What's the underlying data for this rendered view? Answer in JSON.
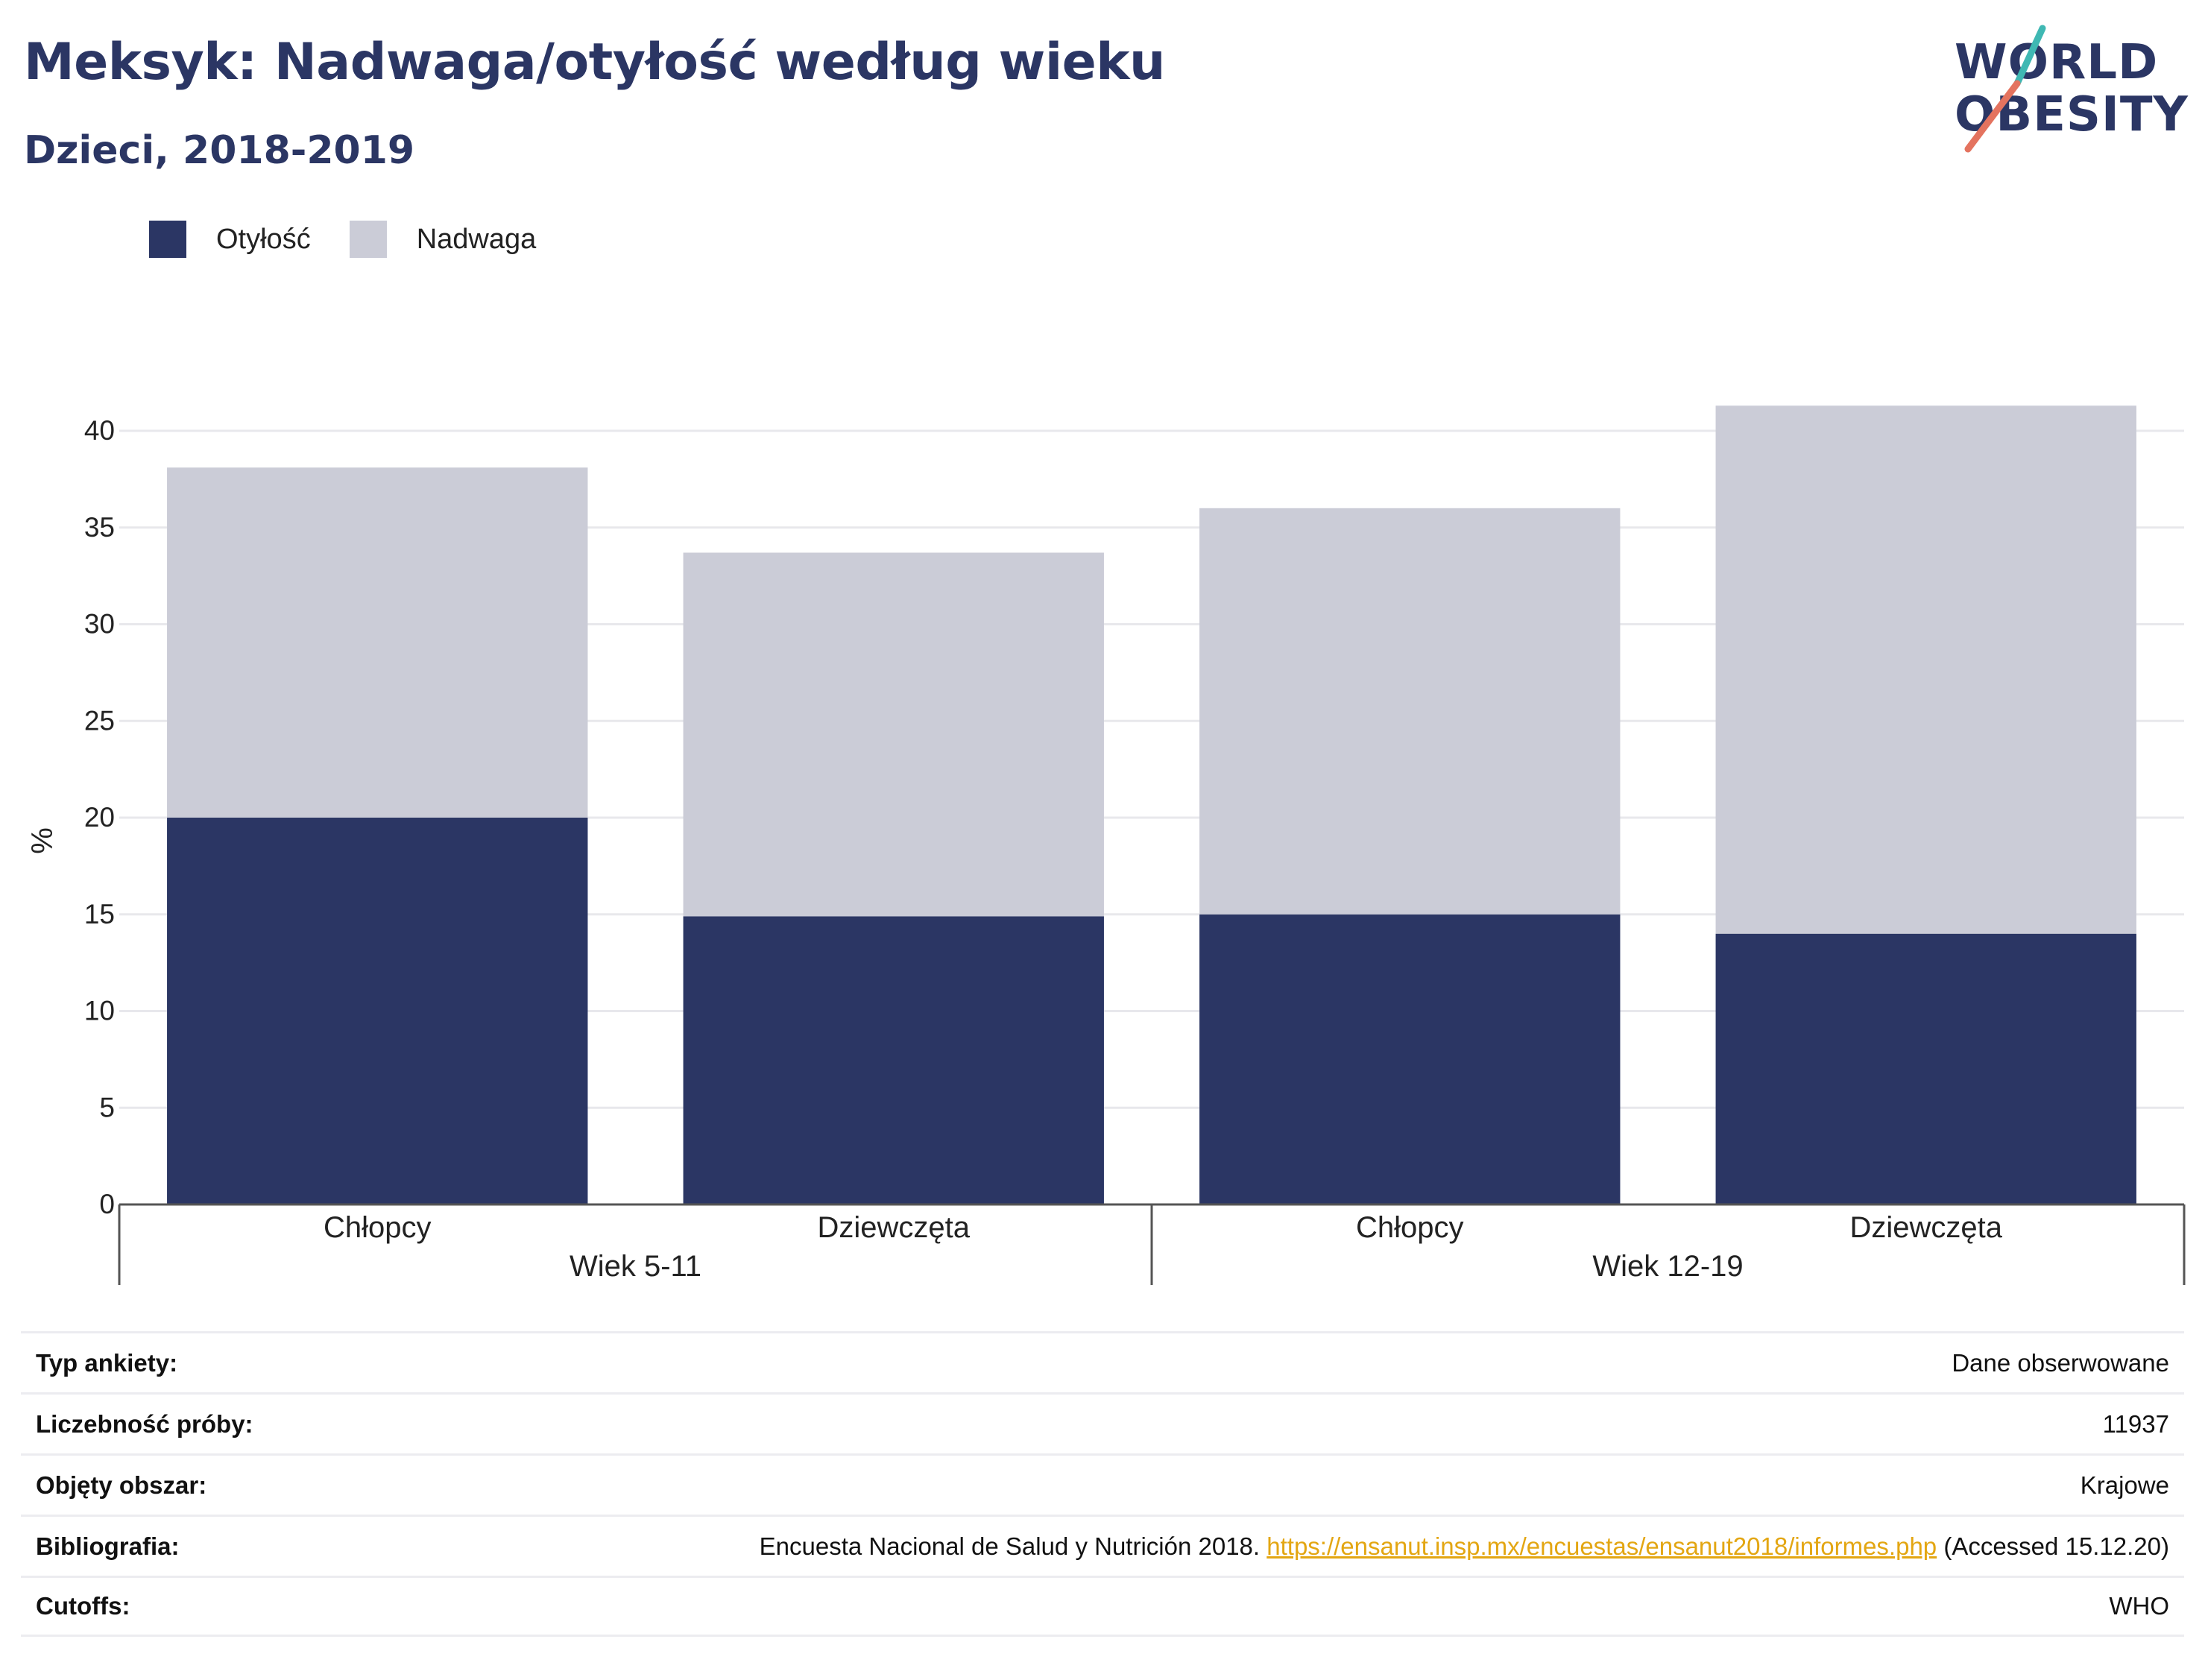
{
  "header": {
    "title": "Meksyk: Nadwaga/otyłość według wieku",
    "subtitle": "Dzieci, 2018-2019"
  },
  "logo": {
    "line1": "WORLD",
    "line2": "OBESITY",
    "icon": "world-obesity-logo"
  },
  "legend": [
    {
      "label": "Otyłość",
      "color": "#2b3664"
    },
    {
      "label": "Nadwaga",
      "color": "#cbccd7"
    }
  ],
  "chart_data": {
    "type": "bar",
    "stacked": true,
    "ylabel": "%",
    "ylim": [
      0,
      40
    ],
    "yticks": [
      0,
      5,
      10,
      15,
      20,
      25,
      30,
      35,
      40
    ],
    "grid": true,
    "legend_position": "top-left",
    "categories": [
      "Chłopcy",
      "Dziewczęta",
      "Chłopcy",
      "Dziewczęta"
    ],
    "groups": [
      {
        "label": "Wiek 5-11",
        "categories": [
          0,
          1
        ]
      },
      {
        "label": "Wiek 12-19",
        "categories": [
          2,
          3
        ]
      }
    ],
    "series": [
      {
        "name": "Otyłość",
        "color": "#2b3664",
        "values": [
          20.0,
          14.9,
          15.0,
          14.0
        ]
      },
      {
        "name": "Nadwaga",
        "color": "#cbccd7",
        "values": [
          18.1,
          18.8,
          21.0,
          27.3
        ]
      }
    ]
  },
  "info_table": [
    {
      "label": "Typ ankiety:",
      "value": "Dane obserwowane"
    },
    {
      "label": "Liczebność próby:",
      "value": "11937"
    },
    {
      "label": "Objęty obszar:",
      "value": "Krajowe"
    },
    {
      "label": "Bibliografia:",
      "value": "Encuesta Nacional de Salud y Nutrición 2018. ",
      "link": "https://ensanut.insp.mx/encuestas/ensanut2018/informes.php",
      "suffix": " (Accessed 15.12.20)"
    },
    {
      "label": "Cutoffs:",
      "value": "WHO"
    }
  ]
}
